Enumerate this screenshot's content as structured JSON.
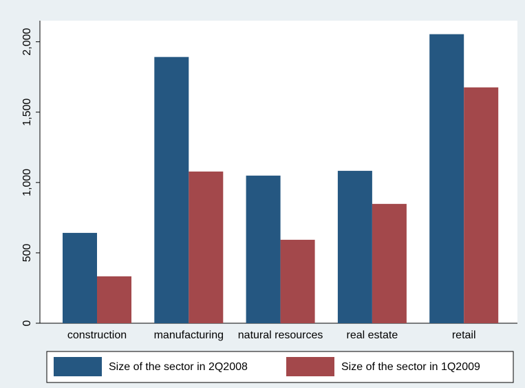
{
  "chart_data": {
    "type": "bar",
    "categories": [
      "construction",
      "manufacturing",
      "natural resources",
      "real estate",
      "retail"
    ],
    "series": [
      {
        "name": "Size of the sector in 2Q2008",
        "color": "#255781",
        "values": [
          642,
          1892,
          1049,
          1083,
          2054
        ]
      },
      {
        "name": "Size of the sector in 1Q2009",
        "color": "#a3484b",
        "values": [
          333,
          1078,
          593,
          848,
          1676
        ]
      }
    ],
    "ylim": [
      0,
      2150
    ],
    "yticks": [
      0,
      500,
      {
        "value": 1000,
        "label": "1,000"
      },
      {
        "value": 1500,
        "label": "1,500"
      },
      {
        "value": 2000,
        "label": "2,000"
      }
    ],
    "legend": "bottom"
  }
}
